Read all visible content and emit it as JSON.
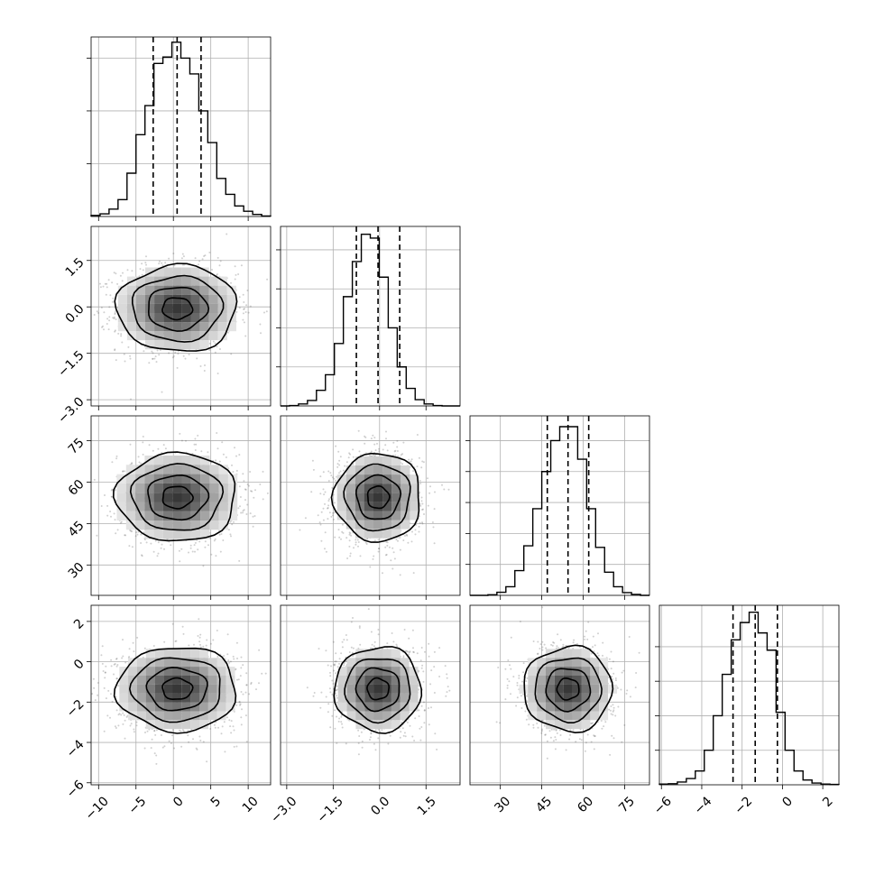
{
  "chart_data": {
    "type": "corner",
    "title": "",
    "parameters": [
      {
        "index": 0,
        "range": [
          -11,
          13
        ],
        "ticks": [
          -10,
          -5,
          0,
          5,
          10
        ],
        "center": 0.5,
        "sd": 4.0,
        "quantiles": [
          -2.7,
          0.5,
          3.7
        ]
      },
      {
        "index": 1,
        "range": [
          -3.2,
          2.6
        ],
        "ticks": [
          -3.0,
          -1.5,
          0.0,
          1.5
        ],
        "center": -0.05,
        "sd": 0.7,
        "quantiles": [
          -0.75,
          -0.05,
          0.65
        ]
      },
      {
        "index": 2,
        "range": [
          19,
          84
        ],
        "ticks": [
          30,
          45,
          60,
          75
        ],
        "center": 54.5,
        "sd": 8.0,
        "quantiles": [
          47,
          54.5,
          62
        ]
      },
      {
        "index": 3,
        "range": [
          -6.1,
          2.8
        ],
        "ticks": [
          -6,
          -4,
          -2,
          0,
          2
        ],
        "center": -1.35,
        "sd": 1.05,
        "quantiles": [
          -2.45,
          -1.35,
          -0.25
        ]
      }
    ],
    "tick_labels": {
      "x": [
        [
          "−10",
          "−5",
          "0",
          "5",
          "10"
        ],
        [
          "−3.0",
          "−1.5",
          "0.0",
          "1.5"
        ],
        [
          "30",
          "45",
          "60",
          "75"
        ],
        [
          "−6",
          "−4",
          "−2",
          "0",
          "2"
        ]
      ],
      "y": [
        [],
        [
          "−3.0",
          "−1.5",
          "0.0",
          "1.5"
        ],
        [
          "30",
          "45",
          "60",
          "75"
        ],
        [
          "−6",
          "−4",
          "−2",
          "0",
          "2"
        ]
      ]
    },
    "histograms": [
      {
        "parameter": 0,
        "bin_edges": [
          -11,
          -9.8,
          -8.6,
          -7.4,
          -6.2,
          -5.0,
          -3.8,
          -2.6,
          -1.4,
          -0.2,
          1.0,
          2.2,
          3.4,
          4.6,
          5.8,
          7.0,
          8.2,
          9.4,
          10.6,
          11.8,
          13.0
        ],
        "counts": [
          2,
          5,
          14,
          32,
          82,
          155,
          210,
          290,
          302,
          330,
          300,
          270,
          200,
          140,
          72,
          42,
          20,
          10,
          4,
          1
        ],
        "ymax": 340,
        "yticks": [
          100,
          200,
          300
        ]
      },
      {
        "parameter": 1,
        "bin_edges": [
          -3.2,
          -2.91,
          -2.62,
          -2.33,
          -2.04,
          -1.75,
          -1.46,
          -1.17,
          -0.88,
          -0.59,
          -0.3,
          -0.01,
          0.28,
          0.57,
          0.86,
          1.15,
          1.44,
          1.73,
          2.02,
          2.31,
          2.6
        ],
        "counts": [
          0,
          1,
          5,
          14,
          40,
          80,
          160,
          280,
          370,
          440,
          430,
          330,
          200,
          100,
          45,
          16,
          5,
          1,
          0,
          0
        ],
        "ymax": 460,
        "yticks": [
          100,
          200,
          300,
          400
        ]
      },
      {
        "parameter": 2,
        "bin_edges": [
          19,
          22.25,
          25.5,
          28.75,
          32,
          35.25,
          38.5,
          41.75,
          45,
          48.25,
          51.5,
          54.75,
          58,
          61.25,
          64.5,
          67.75,
          71,
          74.25,
          77.5,
          80.75,
          84
        ],
        "counts": [
          0,
          0,
          2,
          10,
          28,
          80,
          160,
          280,
          400,
          500,
          545,
          545,
          440,
          280,
          155,
          75,
          28,
          9,
          3,
          0
        ],
        "ymax": 580,
        "yticks": [
          100,
          200,
          300,
          400,
          500
        ]
      },
      {
        "parameter": 3,
        "bin_edges": [
          -6.1,
          -5.655,
          -5.21,
          -4.765,
          -4.32,
          -3.875,
          -3.43,
          -2.985,
          -2.54,
          -2.095,
          -1.65,
          -1.205,
          -0.76,
          -0.315,
          0.13,
          0.575,
          1.02,
          1.465,
          1.91,
          2.355,
          2.8
        ],
        "counts": [
          2,
          3,
          8,
          18,
          40,
          100,
          200,
          320,
          420,
          470,
          500,
          440,
          390,
          210,
          100,
          40,
          14,
          5,
          2,
          1
        ],
        "ymax": 520,
        "yticks": [
          100,
          200,
          300,
          400
        ]
      }
    ],
    "pairs": [
      {
        "x": 0,
        "y": 1
      },
      {
        "x": 0,
        "y": 2
      },
      {
        "x": 1,
        "y": 2
      },
      {
        "x": 0,
        "y": 3
      },
      {
        "x": 1,
        "y": 3
      },
      {
        "x": 2,
        "y": 3
      }
    ],
    "contour_levels_sigma": [
      0.5,
      1.0,
      1.5,
      2.0
    ],
    "grid": true
  }
}
